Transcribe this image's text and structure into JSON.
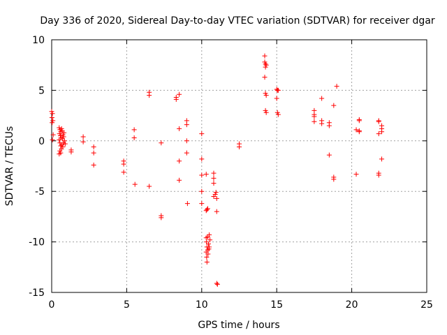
{
  "chart_data": {
    "type": "scatter",
    "title": "Day 336 of 2020, Sidereal Day-to-day VTEC variation (SDTVAR) for receiver dgar",
    "xlabel": "GPS time / hours",
    "ylabel": "SDTVAR / TECUs",
    "xlim": [
      0,
      25
    ],
    "ylim": [
      -15,
      10
    ],
    "xticks": [
      0,
      5,
      10,
      15,
      20,
      25
    ],
    "yticks": [
      -15,
      -10,
      -5,
      0,
      5,
      10
    ],
    "grid": true,
    "marker": "plus",
    "color": "#ff0000",
    "points": [
      [
        0.0,
        2.9
      ],
      [
        0.05,
        2.7
      ],
      [
        0.02,
        2.3
      ],
      [
        0.08,
        2.0
      ],
      [
        0.03,
        1.8
      ],
      [
        0.1,
        0.6
      ],
      [
        0.05,
        0.1
      ],
      [
        0.5,
        1.3
      ],
      [
        0.55,
        1.1
      ],
      [
        0.6,
        0.9
      ],
      [
        0.52,
        0.7
      ],
      [
        0.58,
        0.5
      ],
      [
        0.62,
        0.3
      ],
      [
        0.5,
        0.1
      ],
      [
        0.55,
        -0.2
      ],
      [
        0.6,
        -0.5
      ],
      [
        0.65,
        -0.8
      ],
      [
        0.55,
        -1.0
      ],
      [
        0.5,
        -1.3
      ],
      [
        0.7,
        1.0
      ],
      [
        0.75,
        0.6
      ],
      [
        0.72,
        0.2
      ],
      [
        0.78,
        -0.2
      ],
      [
        0.68,
        -0.4
      ],
      [
        0.8,
        0.4
      ],
      [
        0.85,
        0.0
      ],
      [
        0.66,
        1.2
      ],
      [
        0.74,
        -0.6
      ],
      [
        0.6,
        -1.2
      ],
      [
        0.82,
        0.8
      ],
      [
        0.9,
        -0.3
      ],
      [
        1.3,
        -0.9
      ],
      [
        1.3,
        -1.1
      ],
      [
        2.1,
        0.4
      ],
      [
        2.1,
        -0.1
      ],
      [
        2.8,
        -0.6
      ],
      [
        2.8,
        -1.2
      ],
      [
        2.8,
        -2.4
      ],
      [
        4.8,
        -2.0
      ],
      [
        4.8,
        -2.3
      ],
      [
        4.8,
        -3.1
      ],
      [
        5.5,
        1.1
      ],
      [
        5.5,
        0.3
      ],
      [
        5.55,
        -4.3
      ],
      [
        6.5,
        4.8
      ],
      [
        6.5,
        4.5
      ],
      [
        6.5,
        -4.5
      ],
      [
        7.3,
        -0.2
      ],
      [
        7.3,
        -7.4
      ],
      [
        7.3,
        -7.6
      ],
      [
        8.3,
        4.3
      ],
      [
        8.3,
        4.1
      ],
      [
        8.5,
        4.6
      ],
      [
        8.5,
        1.2
      ],
      [
        8.5,
        -2.0
      ],
      [
        8.5,
        -3.9
      ],
      [
        9.0,
        2.0
      ],
      [
        9.0,
        1.6
      ],
      [
        9.0,
        0.0
      ],
      [
        9.0,
        -1.2
      ],
      [
        9.05,
        -6.2
      ],
      [
        10.0,
        0.7
      ],
      [
        10.0,
        -1.8
      ],
      [
        10.0,
        -3.4
      ],
      [
        10.0,
        -5.0
      ],
      [
        10.0,
        -6.2
      ],
      [
        10.3,
        -3.3
      ],
      [
        10.3,
        -6.9
      ],
      [
        10.35,
        -6.8
      ],
      [
        10.4,
        -6.7
      ],
      [
        10.3,
        -9.6
      ],
      [
        10.32,
        -10.0
      ],
      [
        10.35,
        -10.5
      ],
      [
        10.3,
        -11.0
      ],
      [
        10.33,
        -11.5
      ],
      [
        10.35,
        -12.0
      ],
      [
        10.4,
        -9.5
      ],
      [
        10.45,
        -10.2
      ],
      [
        10.4,
        -10.8
      ],
      [
        10.42,
        -11.2
      ],
      [
        10.5,
        -9.3
      ],
      [
        10.55,
        -9.8
      ],
      [
        10.5,
        -10.5
      ],
      [
        10.48,
        -10.7
      ],
      [
        10.8,
        -3.2
      ],
      [
        10.8,
        -3.7
      ],
      [
        10.8,
        -4.2
      ],
      [
        10.8,
        -5.5
      ],
      [
        10.9,
        -5.3
      ],
      [
        10.95,
        -5.1
      ],
      [
        11.0,
        -5.7
      ],
      [
        11.0,
        -7.0
      ],
      [
        11.0,
        -14.1
      ],
      [
        11.05,
        -14.2
      ],
      [
        12.5,
        -0.3
      ],
      [
        12.5,
        -0.6
      ],
      [
        14.2,
        8.4
      ],
      [
        14.2,
        7.8
      ],
      [
        14.25,
        7.6
      ],
      [
        14.3,
        7.5
      ],
      [
        14.25,
        7.3
      ],
      [
        14.2,
        6.3
      ],
      [
        14.25,
        4.7
      ],
      [
        14.3,
        4.5
      ],
      [
        14.25,
        3.0
      ],
      [
        14.3,
        2.8
      ],
      [
        15.0,
        5.1
      ],
      [
        15.05,
        5.0
      ],
      [
        15.1,
        5.0
      ],
      [
        15.0,
        4.2
      ],
      [
        15.05,
        2.8
      ],
      [
        15.1,
        2.6
      ],
      [
        17.5,
        3.0
      ],
      [
        17.5,
        2.6
      ],
      [
        17.5,
        2.4
      ],
      [
        17.5,
        1.9
      ],
      [
        18.0,
        4.2
      ],
      [
        18.0,
        2.0
      ],
      [
        18.0,
        1.7
      ],
      [
        18.5,
        1.8
      ],
      [
        18.5,
        1.5
      ],
      [
        18.5,
        -1.4
      ],
      [
        18.8,
        3.5
      ],
      [
        18.8,
        -3.6
      ],
      [
        18.8,
        -3.8
      ],
      [
        19.0,
        5.4
      ],
      [
        20.3,
        1.1
      ],
      [
        20.3,
        -3.3
      ],
      [
        20.5,
        2.1
      ],
      [
        20.5,
        2.0
      ],
      [
        20.5,
        1.0
      ],
      [
        20.5,
        0.9
      ],
      [
        21.8,
        2.0
      ],
      [
        21.8,
        1.9
      ],
      [
        21.8,
        0.7
      ],
      [
        21.8,
        -3.2
      ],
      [
        21.8,
        -3.4
      ],
      [
        22.0,
        1.5
      ],
      [
        22.0,
        1.2
      ],
      [
        22.0,
        0.9
      ],
      [
        22.0,
        -1.8
      ]
    ]
  }
}
